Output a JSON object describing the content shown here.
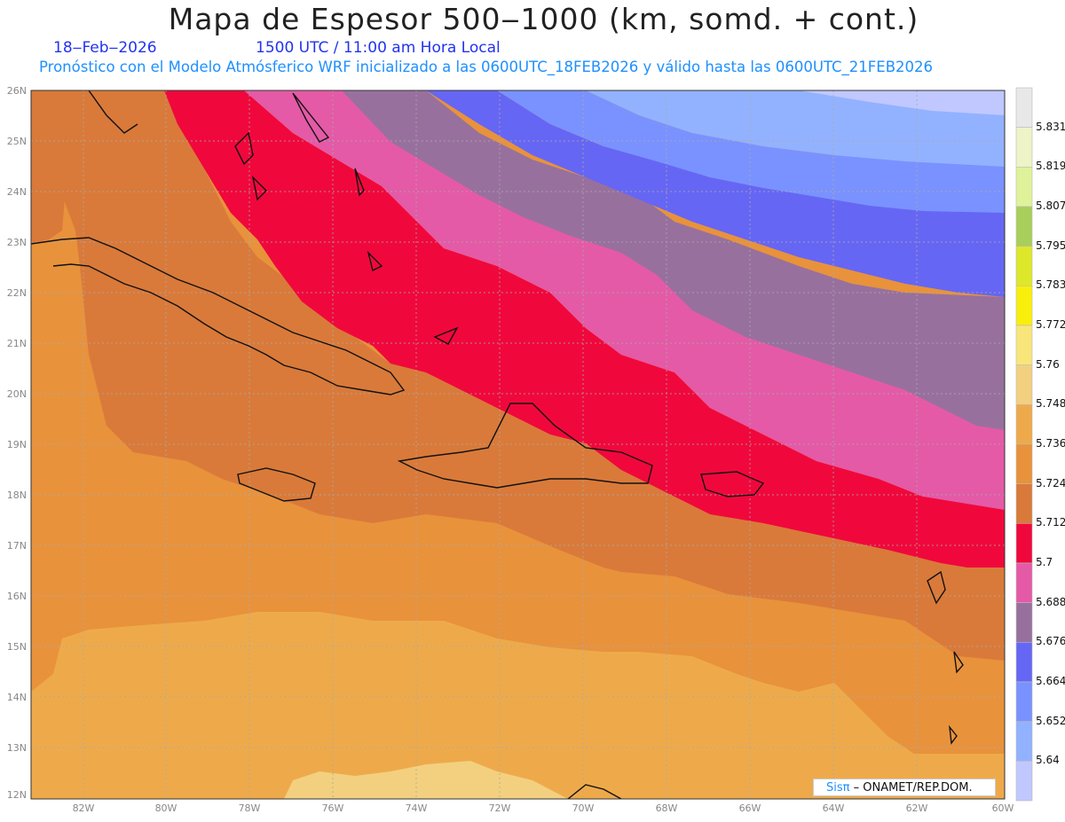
{
  "header": {
    "title": "Mapa de Espesor 500‒1000 (km, somd. + cont.)",
    "date": "18‒Feb‒2026",
    "time": "1500 UTC / 11:00 am Hora Local",
    "forecast_line": "Pronóstico con el Modelo Atmósferico WRF inicializado a las 0600UTC_18FEB2026 y válido hasta las  0600UTC_21FEB2026"
  },
  "axes": {
    "lat_labels": [
      "26N",
      "25N",
      "24N",
      "23N",
      "22N",
      "21N",
      "20N",
      "19N",
      "18N",
      "17N",
      "16N",
      "15N",
      "14N",
      "13N",
      "12N"
    ],
    "lon_labels": [
      "82W",
      "80W",
      "78W",
      "76W",
      "74W",
      "72W",
      "70W",
      "68W",
      "66W",
      "64W",
      "62W",
      "60W"
    ]
  },
  "colorbar": {
    "labels": [
      "5.831",
      "5.819",
      "5.807",
      "5.795",
      "5.783",
      "5.772",
      "5.76",
      "5.748",
      "5.736",
      "5.724",
      "5.712",
      "5.7",
      "5.688",
      "5.676",
      "5.664",
      "5.652",
      "5.64"
    ],
    "colors": [
      "#e8e8e8",
      "#eef3c8",
      "#dff29a",
      "#a8cf5a",
      "#dde82a",
      "#f9ef0c",
      "#f8e67a",
      "#f2d080",
      "#eeaa4a",
      "#e8923c",
      "#d97a3a",
      "#f0083c",
      "#e45aa6",
      "#98709e",
      "#6666f4",
      "#7a92ff",
      "#92b2ff",
      "#c0c8ff"
    ]
  },
  "credit": {
    "sis": "Sisπ",
    "rest": "–  ONAMET/REP.DOM."
  }
}
